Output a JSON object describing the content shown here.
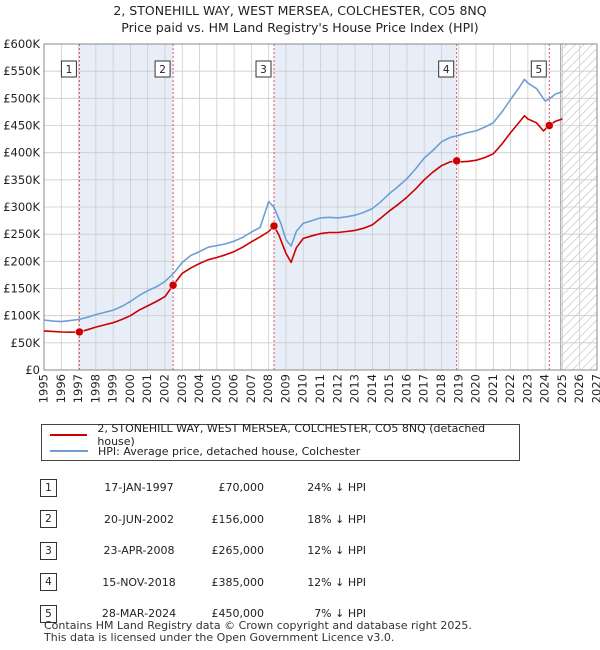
{
  "header": {
    "title_line1": "2, STONEHILL WAY, WEST MERSEA, COLCHESTER, CO5 8NQ",
    "title_line2": "Price paid vs. HM Land Registry's House Price Index (HPI)"
  },
  "colors": {
    "property": "#cc0000",
    "hpi": "#6d9fd6",
    "shade": "#e8eef8",
    "grid": "#cccccc",
    "marker_line": "#e05060"
  },
  "chart_data": {
    "type": "line",
    "xlim": [
      1995,
      2027
    ],
    "ylim": [
      0,
      600000
    ],
    "x_ticks": [
      "1995",
      "1996",
      "1997",
      "1998",
      "1999",
      "2000",
      "2001",
      "2002",
      "2003",
      "2004",
      "2005",
      "2006",
      "2007",
      "2008",
      "2009",
      "2010",
      "2011",
      "2012",
      "2013",
      "2014",
      "2015",
      "2016",
      "2017",
      "2018",
      "2019",
      "2020",
      "2021",
      "2022",
      "2023",
      "2024",
      "2025",
      "2026",
      "2027"
    ],
    "y_ticks": [
      {
        "value": 0,
        "label": "£0"
      },
      {
        "value": 50000,
        "label": "£50K"
      },
      {
        "value": 100000,
        "label": "£100K"
      },
      {
        "value": 150000,
        "label": "£150K"
      },
      {
        "value": 200000,
        "label": "£200K"
      },
      {
        "value": 250000,
        "label": "£250K"
      },
      {
        "value": 300000,
        "label": "£300K"
      },
      {
        "value": 350000,
        "label": "£350K"
      },
      {
        "value": 400000,
        "label": "£400K"
      },
      {
        "value": 450000,
        "label": "£450K"
      },
      {
        "value": 500000,
        "label": "£500K"
      },
      {
        "value": 550000,
        "label": "£550K"
      },
      {
        "value": 600000,
        "label": "£600K"
      }
    ],
    "forecast_start": 2024.9,
    "series": [
      {
        "name": "HPI: Average price, detached house, Colchester",
        "points": [
          [
            1995,
            92000
          ],
          [
            1995.5,
            90000
          ],
          [
            1996,
            89000
          ],
          [
            1996.5,
            91000
          ],
          [
            1997,
            93000
          ],
          [
            1997.5,
            97000
          ],
          [
            1998,
            102000
          ],
          [
            1998.5,
            106000
          ],
          [
            1999,
            110000
          ],
          [
            1999.5,
            117000
          ],
          [
            2000,
            126000
          ],
          [
            2000.5,
            137000
          ],
          [
            2001,
            146000
          ],
          [
            2001.5,
            153000
          ],
          [
            2002,
            163000
          ],
          [
            2002.5,
            178000
          ],
          [
            2003,
            198000
          ],
          [
            2003.5,
            211000
          ],
          [
            2004,
            218000
          ],
          [
            2004.5,
            226000
          ],
          [
            2005,
            229000
          ],
          [
            2005.5,
            232000
          ],
          [
            2006,
            237000
          ],
          [
            2006.5,
            244000
          ],
          [
            2007,
            254000
          ],
          [
            2007.5,
            262000
          ],
          [
            2008,
            310000
          ],
          [
            2008.3,
            300000
          ],
          [
            2008.7,
            270000
          ],
          [
            2009,
            240000
          ],
          [
            2009.3,
            228000
          ],
          [
            2009.6,
            255000
          ],
          [
            2010,
            270000
          ],
          [
            2010.5,
            275000
          ],
          [
            2011,
            280000
          ],
          [
            2011.5,
            281000
          ],
          [
            2012,
            280000
          ],
          [
            2012.5,
            282000
          ],
          [
            2013,
            285000
          ],
          [
            2013.5,
            290000
          ],
          [
            2014,
            297000
          ],
          [
            2014.5,
            310000
          ],
          [
            2015,
            325000
          ],
          [
            2015.5,
            338000
          ],
          [
            2016,
            352000
          ],
          [
            2016.5,
            370000
          ],
          [
            2017,
            390000
          ],
          [
            2017.5,
            404000
          ],
          [
            2018,
            420000
          ],
          [
            2018.5,
            428000
          ],
          [
            2019,
            432000
          ],
          [
            2019.5,
            437000
          ],
          [
            2020,
            440000
          ],
          [
            2020.5,
            447000
          ],
          [
            2021,
            455000
          ],
          [
            2021.5,
            475000
          ],
          [
            2022,
            498000
          ],
          [
            2022.5,
            520000
          ],
          [
            2022.8,
            535000
          ],
          [
            2023,
            528000
          ],
          [
            2023.5,
            518000
          ],
          [
            2024,
            495000
          ],
          [
            2024.3,
            500000
          ],
          [
            2024.6,
            508000
          ],
          [
            2025,
            512000
          ]
        ]
      },
      {
        "name": "2, STONEHILL WAY, WEST MERSEA, COLCHESTER, CO5 8NQ (detached house)",
        "points": [
          [
            1995,
            72000
          ],
          [
            1995.5,
            71000
          ],
          [
            1996,
            70000
          ],
          [
            1996.5,
            69500
          ],
          [
            1997.05,
            70000
          ],
          [
            1997.5,
            74000
          ],
          [
            1998,
            79000
          ],
          [
            1998.5,
            83000
          ],
          [
            1999,
            87000
          ],
          [
            1999.5,
            93000
          ],
          [
            2000,
            100000
          ],
          [
            2000.5,
            110000
          ],
          [
            2001,
            118000
          ],
          [
            2001.5,
            126000
          ],
          [
            2002,
            135000
          ],
          [
            2002.47,
            156000
          ],
          [
            2003,
            178000
          ],
          [
            2003.5,
            188000
          ],
          [
            2004,
            196000
          ],
          [
            2004.5,
            203000
          ],
          [
            2005,
            207000
          ],
          [
            2005.5,
            212000
          ],
          [
            2006,
            218000
          ],
          [
            2006.5,
            226000
          ],
          [
            2007,
            236000
          ],
          [
            2007.5,
            245000
          ],
          [
            2008,
            255000
          ],
          [
            2008.31,
            265000
          ],
          [
            2008.6,
            248000
          ],
          [
            2009,
            215000
          ],
          [
            2009.3,
            198000
          ],
          [
            2009.6,
            225000
          ],
          [
            2010,
            242000
          ],
          [
            2010.5,
            247000
          ],
          [
            2011,
            251000
          ],
          [
            2011.5,
            253000
          ],
          [
            2012,
            253000
          ],
          [
            2012.5,
            255000
          ],
          [
            2013,
            257000
          ],
          [
            2013.5,
            261000
          ],
          [
            2014,
            267000
          ],
          [
            2014.5,
            280000
          ],
          [
            2015,
            293000
          ],
          [
            2015.5,
            305000
          ],
          [
            2016,
            318000
          ],
          [
            2016.5,
            333000
          ],
          [
            2017,
            350000
          ],
          [
            2017.5,
            364000
          ],
          [
            2018,
            376000
          ],
          [
            2018.5,
            383000
          ],
          [
            2018.88,
            385000
          ],
          [
            2019,
            383000
          ],
          [
            2019.5,
            384000
          ],
          [
            2020,
            386000
          ],
          [
            2020.5,
            391000
          ],
          [
            2021,
            398000
          ],
          [
            2021.5,
            416000
          ],
          [
            2022,
            437000
          ],
          [
            2022.5,
            456000
          ],
          [
            2022.8,
            468000
          ],
          [
            2023,
            462000
          ],
          [
            2023.5,
            455000
          ],
          [
            2023.9,
            440000
          ],
          [
            2024.24,
            450000
          ],
          [
            2024.6,
            458000
          ],
          [
            2025,
            462000
          ]
        ]
      }
    ],
    "sales": [
      {
        "label": "1",
        "x": 1997.05,
        "value": 70000
      },
      {
        "label": "2",
        "x": 2002.47,
        "value": 156000
      },
      {
        "label": "3",
        "x": 2008.31,
        "value": 265000
      },
      {
        "label": "4",
        "x": 2018.88,
        "value": 385000
      },
      {
        "label": "5",
        "x": 2024.24,
        "value": 450000
      }
    ],
    "shaded_spans": [
      [
        1997.05,
        2002.47
      ],
      [
        2008.31,
        2018.88
      ]
    ]
  },
  "legend": {
    "property_label": "2, STONEHILL WAY, WEST MERSEA, COLCHESTER, CO5 8NQ (detached house)",
    "hpi_label": "HPI: Average price, detached house, Colchester"
  },
  "table": {
    "rows": [
      {
        "num": "1",
        "date": "17-JAN-1997",
        "price": "£70,000",
        "pct": "24% ↓ HPI"
      },
      {
        "num": "2",
        "date": "20-JUN-2002",
        "price": "£156,000",
        "pct": "18% ↓ HPI"
      },
      {
        "num": "3",
        "date": "23-APR-2008",
        "price": "£265,000",
        "pct": "12% ↓ HPI"
      },
      {
        "num": "4",
        "date": "15-NOV-2018",
        "price": "£385,000",
        "pct": "12% ↓ HPI"
      },
      {
        "num": "5",
        "date": "28-MAR-2024",
        "price": "£450,000",
        "pct": "7% ↓ HPI"
      }
    ]
  },
  "footer": {
    "line1": "Contains HM Land Registry data © Crown copyright and database right 2025.",
    "line2": "This data is licensed under the Open Government Licence v3.0."
  }
}
